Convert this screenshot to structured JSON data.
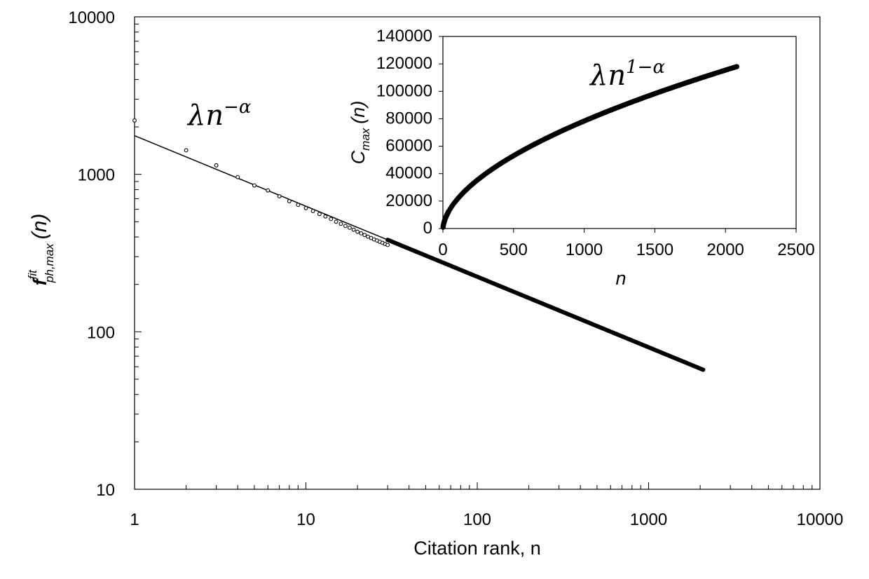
{
  "chart_data": [
    {
      "type": "scatter",
      "scale": "log-log",
      "title": "",
      "xlabel": "Citation rank, n",
      "ylabel": "f_ph,max^fit (n)",
      "ylabel_main": "f",
      "ylabel_sup": "fit",
      "ylabel_sub": "ph,max",
      "ylabel_arg": "(n)",
      "xlim": [
        1,
        10000
      ],
      "ylim": [
        10,
        10000
      ],
      "x_ticks": [
        1,
        10,
        100,
        1000,
        10000
      ],
      "x_tick_labels": [
        "1",
        "10",
        "100",
        "1000",
        "10000"
      ],
      "y_ticks": [
        10,
        100,
        1000,
        10000
      ],
      "y_tick_labels": [
        "10",
        "100",
        "1000",
        "10000"
      ],
      "grid": false,
      "legend": "none",
      "annotation": "λn^−α",
      "annotation_base": "λn",
      "annotation_exp": "−α",
      "fit": {
        "model": "lambda * n^(-alpha)",
        "lambda": 1760,
        "alpha": 0.448,
        "x_range": [
          1,
          2080
        ]
      },
      "series": [
        {
          "name": "data",
          "marker": "open-circle",
          "x": [
            1,
            2,
            3,
            4,
            5,
            6,
            7,
            8,
            9,
            10,
            11,
            12,
            13,
            14,
            15,
            16,
            17,
            18,
            19,
            20,
            21,
            22,
            23,
            24,
            25,
            26,
            27,
            28,
            29,
            30
          ],
          "y": [
            2200,
            1420,
            1140,
            960,
            850,
            790,
            725,
            675,
            640,
            610,
            585,
            560,
            540,
            520,
            500,
            485,
            470,
            458,
            445,
            432,
            422,
            412,
            402,
            394,
            386,
            380,
            373,
            367,
            361,
            356
          ],
          "dense_tail": {
            "x_range": [
              30,
              2080
            ],
            "follows": "fit"
          }
        }
      ]
    },
    {
      "type": "scatter",
      "title": "",
      "xlabel": "n",
      "ylabel": "C_max (n)",
      "ylabel_main": "C",
      "ylabel_sub": "max",
      "ylabel_arg": "(n)",
      "xlim": [
        0,
        2500
      ],
      "ylim": [
        0,
        140000
      ],
      "x_ticks": [
        0,
        500,
        1000,
        1500,
        2000,
        2500
      ],
      "x_tick_labels": [
        "0",
        "500",
        "1000",
        "1500",
        "2000",
        "2500"
      ],
      "y_ticks": [
        0,
        20000,
        40000,
        60000,
        80000,
        100000,
        120000,
        140000
      ],
      "y_tick_labels": [
        "0",
        "20000",
        "40000",
        "60000",
        "80000",
        "100000",
        "120000",
        "140000"
      ],
      "grid": false,
      "legend": "none",
      "annotation": "λn^1−α",
      "annotation_base": "λn",
      "annotation_exp": "1−α",
      "series": [
        {
          "name": "cumulative",
          "marker": "filled-circle",
          "model": "sum of fit values up to n",
          "x_range": [
            1,
            2080
          ],
          "y_end": 118000
        }
      ]
    }
  ]
}
